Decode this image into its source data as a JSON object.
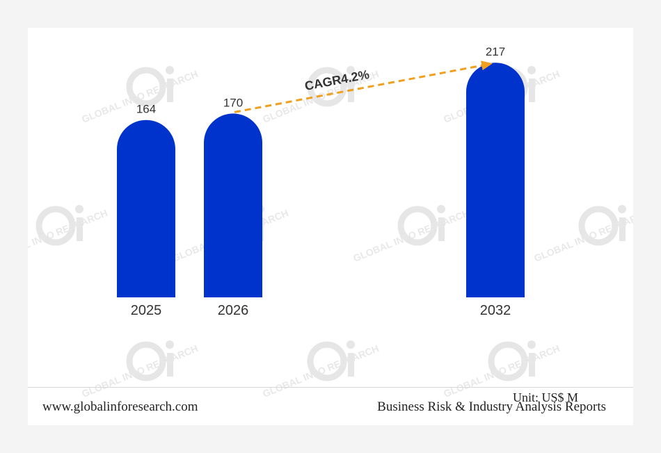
{
  "chart_data": {
    "type": "bar",
    "categories": [
      "2025",
      "2026",
      "2032"
    ],
    "values": [
      164,
      170,
      217
    ],
    "value_labels": [
      "164",
      "170",
      "217"
    ],
    "ylim": [
      0,
      230
    ],
    "title": "",
    "xlabel": "",
    "ylabel": "",
    "bar_color": "#0033cc",
    "annotation": {
      "text": "CAGR4.2%",
      "from": "2026",
      "to": "2032",
      "color": "#f0a020"
    }
  },
  "unit_label": "Unit: US$ M",
  "footer": {
    "website": "www.globalinforesearch.com",
    "tagline": "Business Risk & Industry Analysis Reports"
  }
}
